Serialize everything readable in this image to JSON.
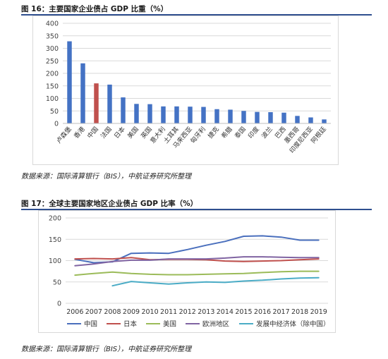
{
  "figure16": {
    "title": "图 16：主要国家企业债占 GDP 比重（%）",
    "source": "数据来源：国际清算银行（BIS），中航证券研究所整理"
  },
  "figure17": {
    "title": "图 17：全球主要国家地区企业债占 GDP 比率（%）",
    "source": "数据来源：国际清算银行（BIS），中航证券研究所整理"
  },
  "colors": {
    "bar_blue": "#4472c4",
    "bar_red": "#c0504d",
    "line_china": "#4a6fbd",
    "line_japan": "#c0504d",
    "line_us": "#9bbb59",
    "line_europe": "#8064a2",
    "line_developing": "#4bacc6"
  },
  "chart_data": [
    {
      "type": "bar",
      "title": "图 16：主要国家企业债占 GDP 比重（%）",
      "categories": [
        "卢森堡",
        "香港",
        "中国",
        "法国",
        "日本",
        "美国",
        "英国",
        "意大利",
        "土耳其",
        "马来西亚",
        "匈牙利",
        "捷克",
        "希腊",
        "泰国",
        "印度",
        "波兰",
        "巴西",
        "墨西哥",
        "印度尼西亚",
        "阿根廷"
      ],
      "values": [
        328,
        240,
        160,
        155,
        104,
        78,
        77,
        68,
        68,
        67,
        66,
        57,
        55,
        50,
        46,
        45,
        43,
        30,
        24,
        16
      ],
      "highlight_index": 2,
      "ylim": [
        0,
        400
      ],
      "yticks": [
        0,
        50,
        100,
        150,
        200,
        250,
        300,
        350,
        400
      ],
      "grid": true,
      "xlabel": "",
      "ylabel": ""
    },
    {
      "type": "line",
      "title": "图 17：全球主要国家地区企业债占 GDP 比率（%）",
      "x": [
        "2006",
        "2007",
        "2008",
        "2009",
        "2010",
        "2011",
        "2012",
        "2013",
        "2014",
        "2015",
        "2016",
        "2017",
        "2018",
        "2019"
      ],
      "series": [
        {
          "name": "中国",
          "values": [
            103,
            95,
            97,
            117,
            118,
            117,
            126,
            136,
            145,
            157,
            158,
            155,
            148,
            148
          ]
        },
        {
          "name": "日本",
          "values": [
            104,
            105,
            104,
            107,
            102,
            103,
            103,
            102,
            99,
            98,
            99,
            100,
            102,
            104
          ]
        },
        {
          "name": "美国",
          "values": [
            66,
            70,
            73,
            70,
            68,
            67,
            67,
            68,
            69,
            70,
            72,
            74,
            75,
            75
          ]
        },
        {
          "name": "欧洲地区",
          "values": [
            88,
            92,
            98,
            101,
            101,
            104,
            104,
            104,
            106,
            109,
            109,
            108,
            107,
            107
          ]
        },
        {
          "name": "发展中经济体（除中国）",
          "values": [
            null,
            null,
            41,
            51,
            48,
            45,
            48,
            50,
            49,
            52,
            54,
            57,
            59,
            60
          ]
        }
      ],
      "ylim": [
        0,
        200
      ],
      "yticks": [
        0,
        50,
        100,
        150,
        200
      ],
      "grid": true,
      "legend": "bottom",
      "xlabel": "",
      "ylabel": ""
    }
  ]
}
